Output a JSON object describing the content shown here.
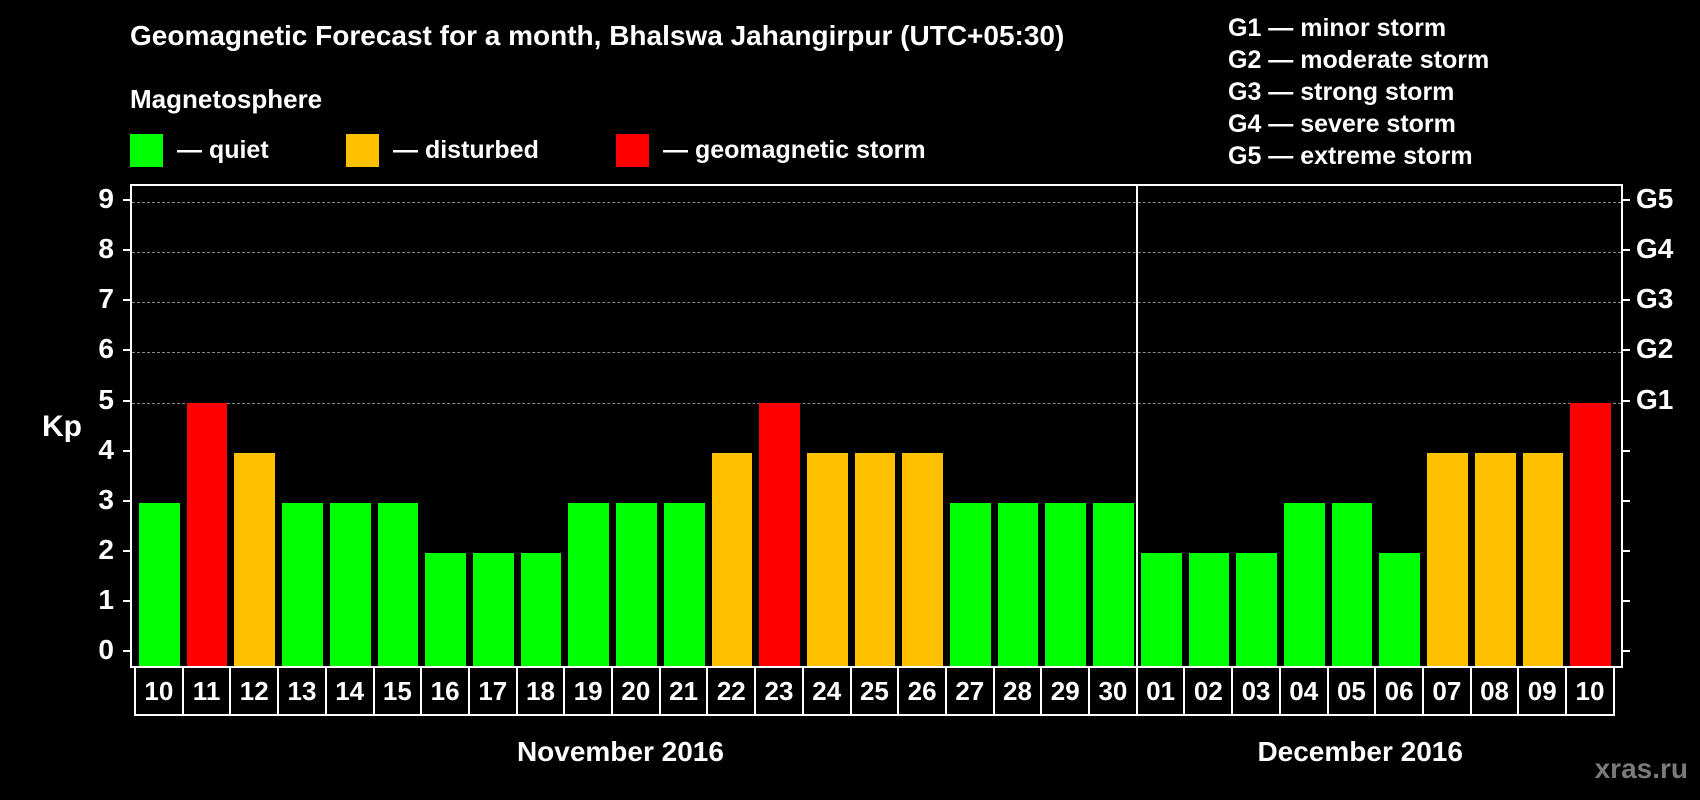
{
  "header": {
    "title": "Geomagnetic Forecast for a month, Bhalswa Jahangirpur (UTC+05:30)",
    "subtitle": "Magnetosphere"
  },
  "legend": [
    {
      "label": "— quiet",
      "color": "#00ff00"
    },
    {
      "label": "— disturbed",
      "color": "#ffc000"
    },
    {
      "label": "— geomagnetic storm",
      "color": "#ff0000"
    }
  ],
  "storm_scale": [
    "G1 — minor storm",
    "G2 — moderate storm",
    "G3 — strong storm",
    "G4 — severe storm",
    "G5 — extreme storm"
  ],
  "axes": {
    "ylabel": "Kp",
    "yticks": [
      "0",
      "1",
      "2",
      "3",
      "4",
      "5",
      "6",
      "7",
      "8",
      "9"
    ],
    "right_ticks": [
      "G1",
      "G2",
      "G3",
      "G4",
      "G5"
    ]
  },
  "months": [
    "November 2016",
    "December 2016"
  ],
  "watermark": "xras.ru",
  "chart_data": {
    "type": "bar",
    "title": "Geomagnetic Forecast for a month, Bhalswa Jahangirpur (UTC+05:30)",
    "xlabel": "November 2016 / December 2016",
    "ylabel": "Kp",
    "ylim": [
      0,
      9
    ],
    "grid": true,
    "legend_position": "top",
    "categories": [
      "10",
      "11",
      "12",
      "13",
      "14",
      "15",
      "16",
      "17",
      "18",
      "19",
      "20",
      "21",
      "22",
      "23",
      "24",
      "25",
      "26",
      "27",
      "28",
      "29",
      "30",
      "01",
      "02",
      "03",
      "04",
      "05",
      "06",
      "07",
      "08",
      "09",
      "10"
    ],
    "values": [
      3,
      5,
      4,
      3,
      3,
      3,
      2,
      2,
      2,
      3,
      3,
      3,
      4,
      5,
      4,
      4,
      4,
      3,
      3,
      3,
      3,
      2,
      2,
      2,
      3,
      3,
      2,
      4,
      4,
      4,
      5
    ],
    "status": [
      "quiet",
      "storm",
      "disturbed",
      "quiet",
      "quiet",
      "quiet",
      "quiet",
      "quiet",
      "quiet",
      "quiet",
      "quiet",
      "quiet",
      "disturbed",
      "storm",
      "disturbed",
      "disturbed",
      "disturbed",
      "quiet",
      "quiet",
      "quiet",
      "quiet",
      "quiet",
      "quiet",
      "quiet",
      "quiet",
      "quiet",
      "quiet",
      "disturbed",
      "disturbed",
      "disturbed",
      "storm"
    ],
    "colors": {
      "quiet": "#00ff00",
      "disturbed": "#ffc000",
      "storm": "#ff0000"
    },
    "right_axis": {
      "5": "G1",
      "6": "G2",
      "7": "G3",
      "8": "G4",
      "9": "G5"
    },
    "month_split_after_index": 20
  }
}
